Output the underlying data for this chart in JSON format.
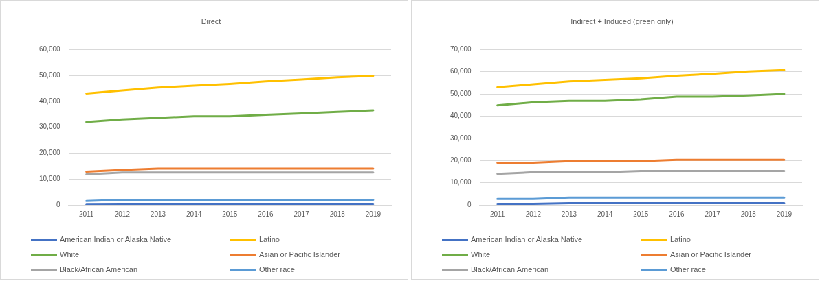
{
  "chart_data": [
    {
      "type": "line",
      "title": "Direct",
      "categories": [
        "2011",
        "2012",
        "2013",
        "2014",
        "2015",
        "2016",
        "2017",
        "2018",
        "2019"
      ],
      "series": [
        {
          "name": "American Indian or Alaska Native",
          "color": "#4472c4",
          "values": [
            300,
            400,
            400,
            400,
            400,
            400,
            400,
            400,
            400
          ]
        },
        {
          "name": "Latino",
          "color": "#ffc000",
          "values": [
            43000,
            44200,
            45300,
            46000,
            46700,
            47700,
            48400,
            49300,
            49800
          ]
        },
        {
          "name": "White",
          "color": "#70ad47",
          "values": [
            32000,
            33000,
            33600,
            34200,
            34200,
            34800,
            35300,
            35900,
            36500
          ]
        },
        {
          "name": "Asian or Pacific Islander",
          "color": "#ed7d31",
          "values": [
            12800,
            13500,
            14000,
            14000,
            14000,
            14000,
            14000,
            14000,
            14000
          ]
        },
        {
          "name": "Black/African American",
          "color": "#a5a5a5",
          "values": [
            11800,
            12500,
            12500,
            12500,
            12500,
            12500,
            12500,
            12500,
            12500
          ]
        },
        {
          "name": "Other race",
          "color": "#5b9bd5",
          "values": [
            1500,
            2000,
            2000,
            2000,
            2000,
            2000,
            2000,
            2000,
            2000
          ]
        }
      ],
      "ylim": [
        0,
        60000
      ],
      "yticks": [
        {
          "value": 0,
          "label": "0"
        },
        {
          "value": 10000,
          "label": "10,000"
        },
        {
          "value": 20000,
          "label": "20,000"
        },
        {
          "value": 30000,
          "label": "30,000"
        },
        {
          "value": 40000,
          "label": "40,000"
        },
        {
          "value": 50000,
          "label": "50,000"
        },
        {
          "value": 60000,
          "label": "60,000"
        }
      ],
      "grid": "y",
      "legend": "bottom"
    },
    {
      "type": "line",
      "title": "Indirect + Induced (green only)",
      "categories": [
        "2011",
        "2012",
        "2013",
        "2014",
        "2015",
        "2016",
        "2017",
        "2018",
        "2019"
      ],
      "series": [
        {
          "name": "American Indian or Alaska Native",
          "color": "#4472c4",
          "values": [
            500,
            500,
            800,
            800,
            800,
            800,
            800,
            800,
            800
          ]
        },
        {
          "name": "Latino",
          "color": "#ffc000",
          "values": [
            53000,
            54300,
            55600,
            56300,
            57000,
            58200,
            59000,
            60100,
            60700
          ]
        },
        {
          "name": "White",
          "color": "#70ad47",
          "values": [
            44800,
            46200,
            46800,
            46800,
            47500,
            48800,
            48800,
            49300,
            50000
          ]
        },
        {
          "name": "Asian or Pacific Islander",
          "color": "#ed7d31",
          "values": [
            19000,
            19000,
            19700,
            19700,
            19700,
            20300,
            20300,
            20300,
            20300
          ]
        },
        {
          "name": "Black/African American",
          "color": "#a5a5a5",
          "values": [
            14000,
            14700,
            14700,
            14700,
            15300,
            15300,
            15300,
            15300,
            15300
          ]
        },
        {
          "name": "Other race",
          "color": "#5b9bd5",
          "values": [
            2700,
            2700,
            3300,
            3300,
            3300,
            3300,
            3300,
            3300,
            3300
          ]
        }
      ],
      "ylim": [
        0,
        70000
      ],
      "yticks": [
        {
          "value": 0,
          "label": "0"
        },
        {
          "value": 10000,
          "label": "10,000"
        },
        {
          "value": 20000,
          "label": "20,000"
        },
        {
          "value": 30000,
          "label": "30,000"
        },
        {
          "value": 40000,
          "label": "40,000"
        },
        {
          "value": 50000,
          "label": "50,000"
        },
        {
          "value": 60000,
          "label": "60,000"
        },
        {
          "value": 70000,
          "label": "70,000"
        }
      ],
      "grid": "y",
      "legend": "bottom"
    }
  ]
}
